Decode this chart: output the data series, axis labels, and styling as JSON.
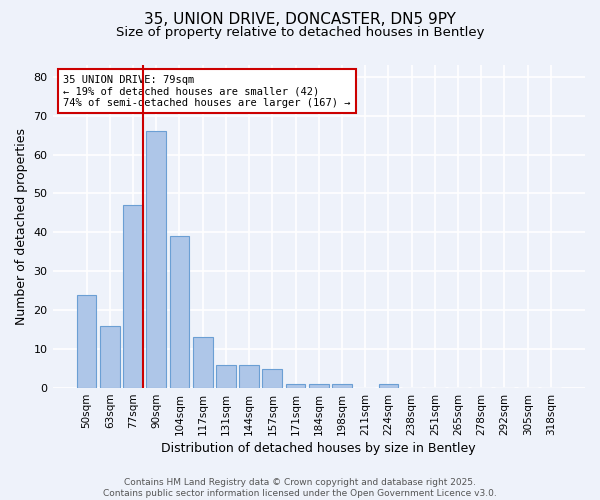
{
  "title1": "35, UNION DRIVE, DONCASTER, DN5 9PY",
  "title2": "Size of property relative to detached houses in Bentley",
  "xlabel": "Distribution of detached houses by size in Bentley",
  "ylabel": "Number of detached properties",
  "categories": [
    "50sqm",
    "63sqm",
    "77sqm",
    "90sqm",
    "104sqm",
    "117sqm",
    "131sqm",
    "144sqm",
    "157sqm",
    "171sqm",
    "184sqm",
    "198sqm",
    "211sqm",
    "224sqm",
    "238sqm",
    "251sqm",
    "265sqm",
    "278sqm",
    "292sqm",
    "305sqm",
    "318sqm"
  ],
  "values": [
    24,
    16,
    47,
    66,
    39,
    13,
    6,
    6,
    5,
    1,
    1,
    1,
    0,
    1,
    0,
    0,
    0,
    0,
    0,
    0,
    0
  ],
  "bar_color": "#aec6e8",
  "bar_edge_color": "#6b9fd4",
  "property_line_index": 2,
  "property_line_color": "#cc0000",
  "annotation_text": "35 UNION DRIVE: 79sqm\n← 19% of detached houses are smaller (42)\n74% of semi-detached houses are larger (167) →",
  "annotation_box_facecolor": "#ffffff",
  "annotation_box_edgecolor": "#cc0000",
  "ylim": [
    0,
    83
  ],
  "yticks": [
    0,
    10,
    20,
    30,
    40,
    50,
    60,
    70,
    80
  ],
  "background_color": "#eef2fa",
  "grid_color": "#ffffff",
  "footer_text": "Contains HM Land Registry data © Crown copyright and database right 2025.\nContains public sector information licensed under the Open Government Licence v3.0.",
  "title1_fontsize": 11,
  "title2_fontsize": 9.5,
  "xlabel_fontsize": 9,
  "ylabel_fontsize": 9,
  "annotation_fontsize": 7.5,
  "footer_fontsize": 6.5,
  "tick_fontsize": 7.5,
  "ytick_fontsize": 8
}
